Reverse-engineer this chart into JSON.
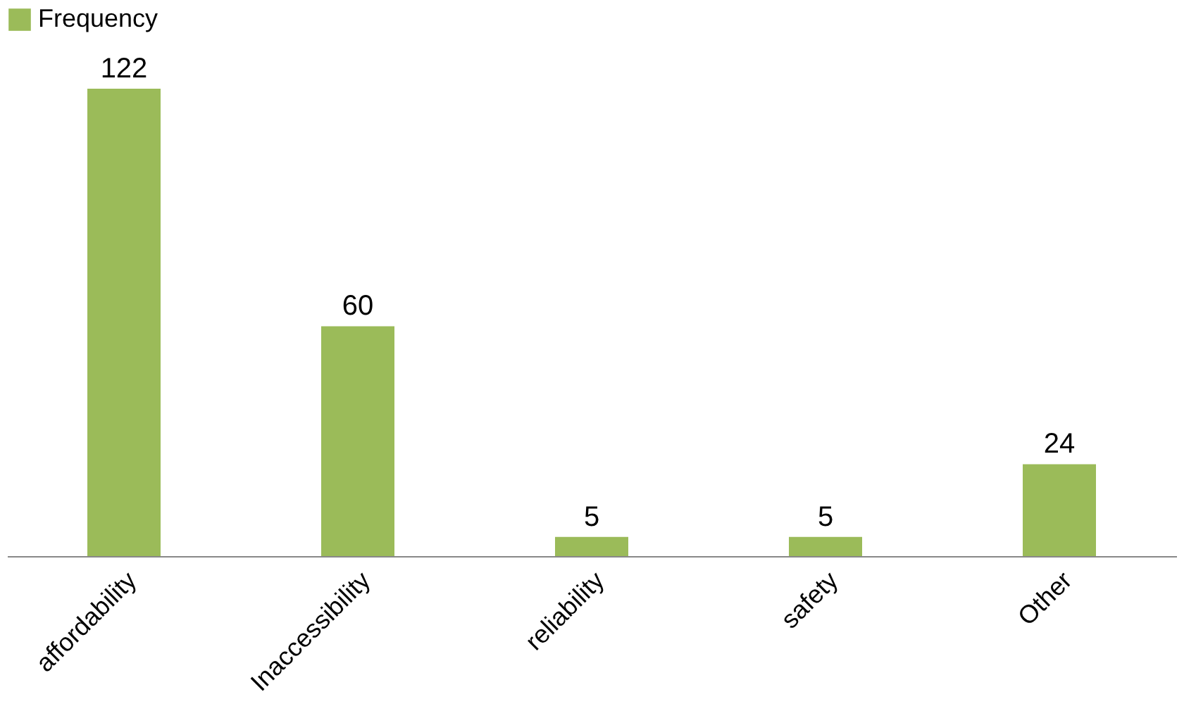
{
  "chart_data": {
    "type": "bar",
    "categories": [
      "affordability",
      "Inaccessibility",
      "reliability",
      "safety",
      "Other"
    ],
    "series": [
      {
        "name": "Frequency",
        "color": "#9bbb59",
        "values": [
          122,
          60,
          5,
          5,
          24
        ]
      }
    ],
    "data_labels": true,
    "legend": "top",
    "grid": false
  }
}
